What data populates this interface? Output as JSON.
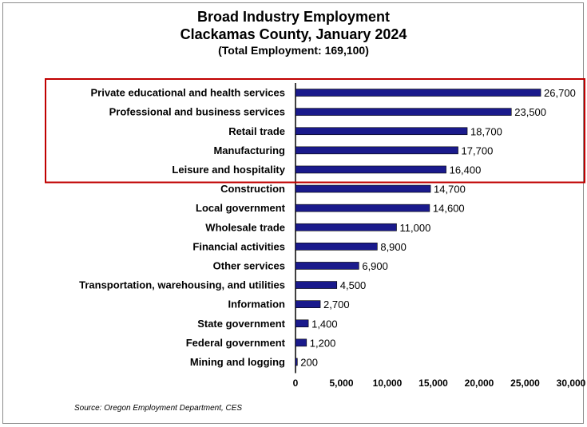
{
  "chart_data": {
    "type": "bar",
    "orientation": "horizontal",
    "title": "Broad Industry Employment",
    "title_line2": "Clackamas County, January 2024",
    "subtitle": "(Total Employment: 169,100)",
    "categories": [
      "Private educational and health services",
      "Professional and business services",
      "Retail trade",
      "Manufacturing",
      "Leisure and hospitality",
      "Construction",
      "Local government",
      "Wholesale trade",
      "Financial activities",
      "Other services",
      "Transportation, warehousing, and utilities",
      "Information",
      "State government",
      "Federal government",
      "Mining and logging"
    ],
    "values": [
      26700,
      23500,
      18700,
      17700,
      16400,
      14700,
      14600,
      11000,
      8900,
      6900,
      4500,
      2700,
      1400,
      1200,
      200
    ],
    "value_labels": [
      "26,700",
      "23,500",
      "18,700",
      "17,700",
      "16,400",
      "14,700",
      "14,600",
      "11,000",
      "8,900",
      "6,900",
      "4,500",
      "2,700",
      "1,400",
      "1,200",
      "200"
    ],
    "xlim": [
      0,
      30000
    ],
    "xticks": [
      0,
      5000,
      10000,
      15000,
      20000,
      25000,
      30000
    ],
    "xtick_labels": [
      "0",
      "5,000",
      "10,000",
      "15,000",
      "20,000",
      "25,000",
      "30,000"
    ],
    "bar_color": "#1a1a8c",
    "highlight_color": "#c00000",
    "highlight_count": 5,
    "grid": false,
    "legend": "none",
    "source": "Source: Oregon Employment Department, CES"
  }
}
